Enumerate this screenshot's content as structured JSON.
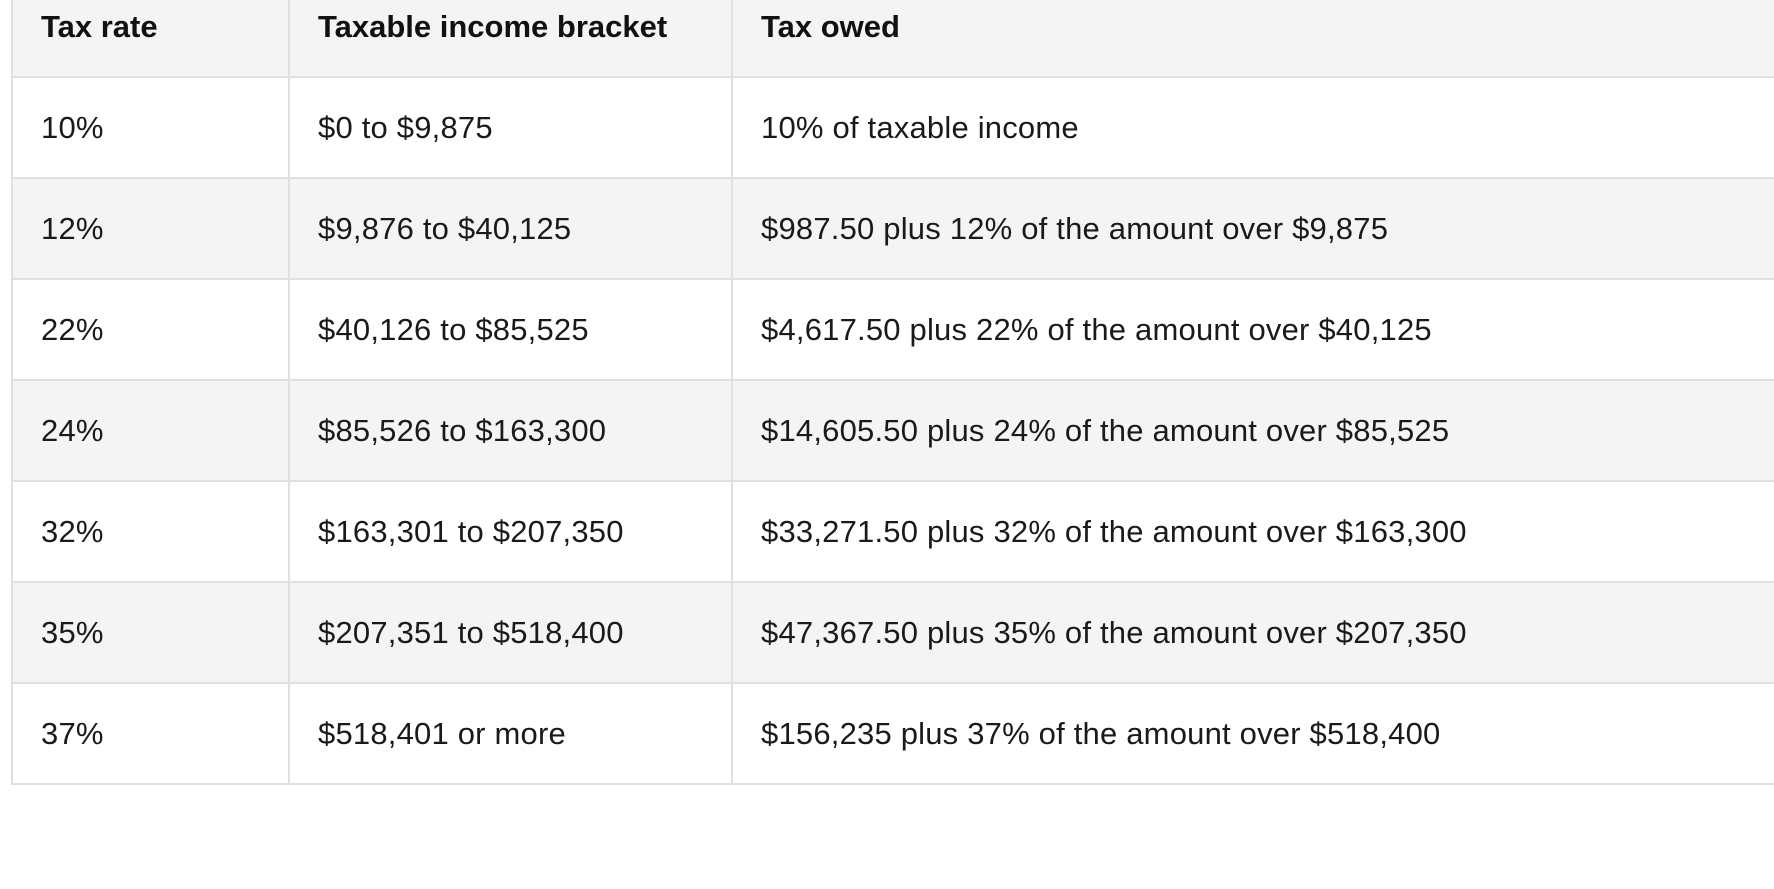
{
  "table": {
    "headers": [
      "Tax rate",
      "Taxable income bracket",
      "Tax owed"
    ],
    "rows": [
      [
        "10%",
        "$0 to $9,875",
        "10% of taxable income"
      ],
      [
        "12%",
        "$9,876 to $40,125",
        "$987.50 plus 12% of the amount over $9,875"
      ],
      [
        "22%",
        "$40,126 to $85,525",
        "$4,617.50 plus 22% of the amount over $40,125"
      ],
      [
        "24%",
        "$85,526 to $163,300",
        "$14,605.50 plus 24% of the amount over $85,525"
      ],
      [
        "32%",
        "$163,301 to $207,350",
        "$33,271.50 plus 32% of the amount over $163,300"
      ],
      [
        "35%",
        "$207,351 to $518,400",
        "$47,367.50 plus 35% of the amount over $207,350"
      ],
      [
        "37%",
        "$518,401 or more",
        "$156,235 plus 37% of the amount over $518,400"
      ]
    ]
  },
  "colors": {
    "header_bg": "#f4f4f4",
    "stripe_bg": "#f4f4f4",
    "row_bg": "#ffffff",
    "border": "#e0e0e0",
    "text": "#1a1a1a"
  }
}
